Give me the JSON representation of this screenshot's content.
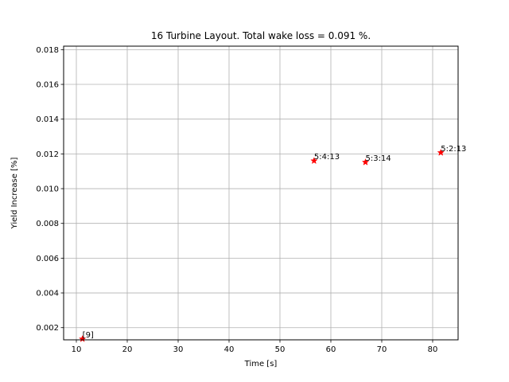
{
  "chart_data": {
    "type": "scatter",
    "title": "16 Turbine Layout. Total wake loss = 0.091 %.",
    "xlabel": "Time [s]",
    "ylabel": "Yield Increase [%]",
    "xlim": [
      7.5,
      85
    ],
    "ylim": [
      0.0013,
      0.0182
    ],
    "xticks": [
      10,
      20,
      30,
      40,
      50,
      60,
      70,
      80
    ],
    "yticks": [
      0.002,
      0.004,
      0.006,
      0.008,
      0.01,
      0.012,
      0.014,
      0.016,
      0.018
    ],
    "grid": true,
    "marker": "star",
    "marker_color": "#ff0000",
    "points": [
      {
        "x": 11.2,
        "y": 0.00135,
        "label": "[9]"
      },
      {
        "x": 56.7,
        "y": 0.0116,
        "label": "5:4:13"
      },
      {
        "x": 66.8,
        "y": 0.01152,
        "label": "5:3:14"
      },
      {
        "x": 81.6,
        "y": 0.01207,
        "label": "5:2:13"
      }
    ]
  }
}
